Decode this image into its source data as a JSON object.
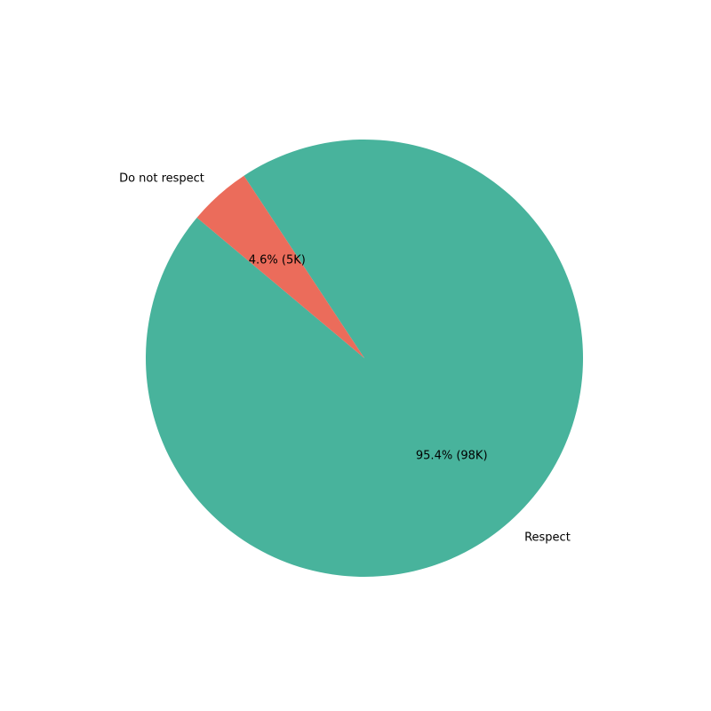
{
  "chart_data": {
    "type": "pie",
    "title": "",
    "slices": [
      {
        "label": "Respect",
        "percent": 95.4,
        "percent_label": "95.4% (98K)",
        "count_label": "98K",
        "color": "#48b39c"
      },
      {
        "label": "Do not respect",
        "percent": 4.6,
        "percent_label": "4.6% (5K)",
        "count_label": "5K",
        "color": "#eb6c5b"
      }
    ],
    "start_angle_deg": 140,
    "direction": "counterclockwise",
    "legend": "none"
  }
}
